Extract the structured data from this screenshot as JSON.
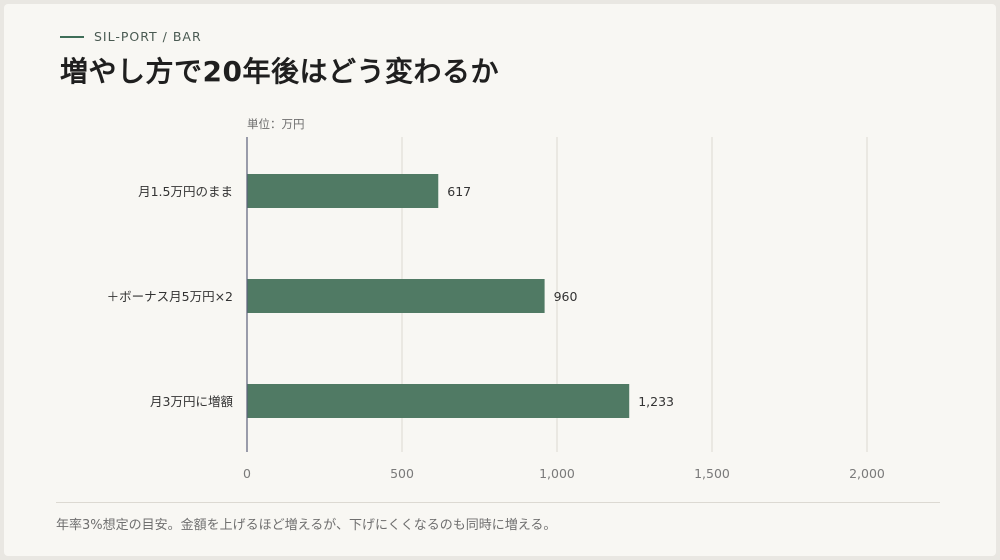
{
  "header": {
    "kicker": "SIL-PORT / BAR",
    "title": "増やし方で20年後はどう変わるか"
  },
  "footnote": "年率3%想定の目安。金額を上げるほど増えるが、下げにくくなるのも同時に増える。",
  "colors": {
    "bar": "#507a64",
    "grid": "#dcd9d2",
    "axis": "#5b5f7a"
  },
  "chart_data": {
    "type": "bar",
    "orientation": "horizontal",
    "unit_label": "単位：万円",
    "categories": [
      "月1.5万円のまま",
      "＋ボーナス月5万円×2",
      "月3万円に増額"
    ],
    "values": [
      617,
      960,
      1233
    ],
    "value_labels": [
      "617",
      "960",
      "1,233"
    ],
    "xlim": [
      0,
      2000
    ],
    "xticks": [
      0,
      500,
      1000,
      1500,
      2000
    ],
    "xtick_labels": [
      "0",
      "500",
      "1,000",
      "1,500",
      "2,000"
    ],
    "grid": true
  }
}
